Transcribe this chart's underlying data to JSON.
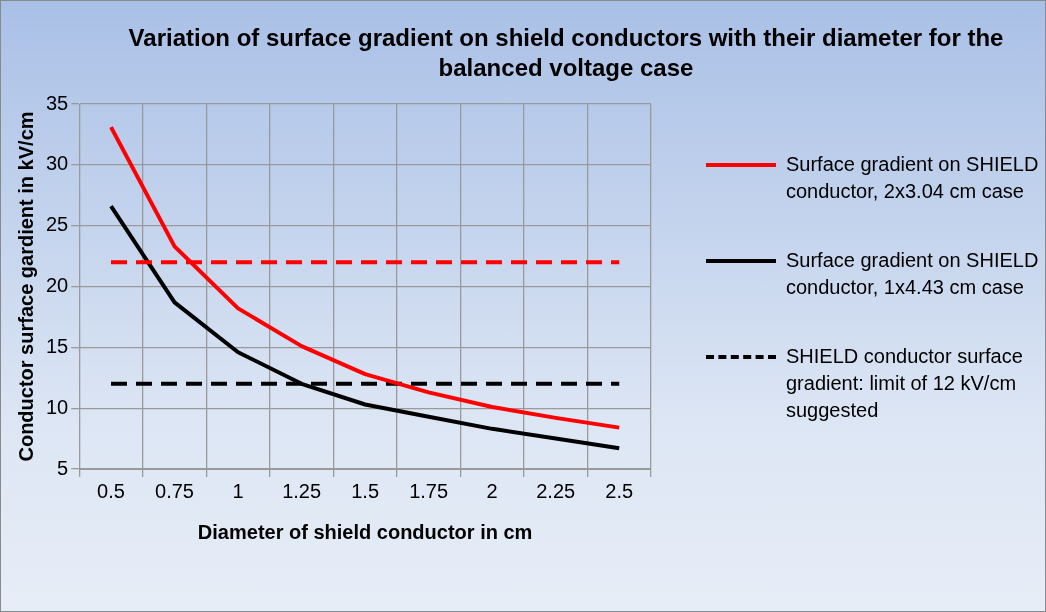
{
  "chart_data": {
    "type": "line",
    "title": "Variation of surface gradient on shield conductors with their diameter for the balanced voltage case",
    "xlabel": "Diameter of shield conductor in cm",
    "ylabel": "Conductor surface gardient in kV/cm",
    "categories": [
      "0.5",
      "0.75",
      "1",
      "1.25",
      "1.5",
      "1.75",
      "2",
      "2.25",
      "2.5"
    ],
    "series": [
      {
        "name": "Surface gradient on SHIELD conductor, 2x3.04 cm case",
        "color": "#ff0000",
        "values": [
          33.1,
          23.3,
          18.2,
          15.1,
          12.8,
          11.3,
          10.1,
          9.2,
          8.4
        ]
      },
      {
        "color": "#ff0000",
        "line_style": "dashed",
        "values": [
          22,
          22,
          22,
          22,
          22,
          22,
          22,
          22,
          22
        ]
      },
      {
        "name": "Surface gradient on SHIELD conductor, 1x4.43 cm case",
        "color": "#000000",
        "values": [
          26.6,
          18.7,
          14.6,
          12.0,
          10.3,
          9.3,
          8.3,
          7.5,
          6.7
        ]
      },
      {
        "name": "SHIELD conductor surface gradient: limit of 12 kV/cm suggested",
        "color": "#000000",
        "line_style": "dashed",
        "values": [
          12,
          12,
          12,
          12,
          12,
          12,
          12,
          12,
          12
        ]
      }
    ],
    "ylim": [
      5,
      35
    ],
    "yticks": [
      5,
      10,
      15,
      20,
      25,
      30,
      35
    ],
    "grid": true,
    "legend": "right",
    "marker": "none",
    "line_style": "solid"
  }
}
